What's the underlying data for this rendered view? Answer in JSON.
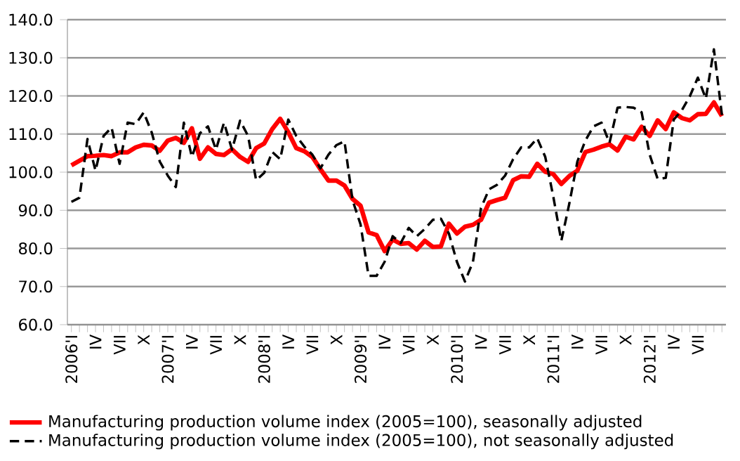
{
  "chart_data": {
    "type": "line",
    "categories": [
      "2006'I",
      null,
      null,
      "IV",
      null,
      null,
      "VII",
      null,
      null,
      "X",
      null,
      null,
      "2007'I",
      null,
      null,
      "IV",
      null,
      null,
      "VII",
      null,
      null,
      "X",
      null,
      null,
      "2008'I",
      null,
      null,
      "IV",
      null,
      null,
      "VII",
      null,
      null,
      "X",
      null,
      null,
      "2009'I",
      null,
      null,
      "IV",
      null,
      null,
      "VII",
      null,
      null,
      "X",
      null,
      null,
      "2010'I",
      null,
      null,
      "IV",
      null,
      null,
      "VII",
      null,
      null,
      "X",
      null,
      null,
      "2011'I",
      null,
      null,
      "IV",
      null,
      null,
      "VII",
      null,
      null,
      "X",
      null,
      null,
      "2012'I",
      null,
      null,
      "IV",
      null,
      null,
      "VII",
      null,
      null,
      null
    ],
    "ylim": [
      60,
      140
    ],
    "yticks": [
      {
        "value": 60,
        "label": "60.0"
      },
      {
        "value": 70,
        "label": "70.0"
      },
      {
        "value": 80,
        "label": "80.0"
      },
      {
        "value": 90,
        "label": "90.0"
      },
      {
        "value": 100,
        "label": "100.0"
      },
      {
        "value": 110,
        "label": "110.0"
      },
      {
        "value": 120,
        "label": "120.0"
      },
      {
        "value": 130,
        "label": "130.0"
      },
      {
        "value": 140,
        "label": "140.0"
      }
    ],
    "grid": "y",
    "legend": "bottom",
    "marker": "none",
    "series": [
      {
        "name": "Manufacturing production volume index (2005=100), seasonally adjusted",
        "color": "#ff0000",
        "line_style": "solid",
        "values": [
          101.8,
          103,
          104.2,
          104.3,
          104.5,
          104.2,
          105.2,
          105.2,
          106.5,
          107.2,
          107,
          105.6,
          108.3,
          109,
          107.7,
          111.5,
          103.5,
          106.5,
          104.8,
          104.5,
          106,
          104,
          102.7,
          106.3,
          107.5,
          111.3,
          114,
          110.5,
          106.3,
          105.5,
          104,
          100.8,
          97.8,
          97.8,
          96.5,
          93,
          91.2,
          84.2,
          83.5,
          79.3,
          82.3,
          81.2,
          81.4,
          79.7,
          82,
          80.4,
          80.5,
          86.5,
          83.9,
          85.7,
          86.2,
          87.5,
          92,
          92.7,
          93.3,
          97.9,
          98.9,
          98.8,
          102.2,
          100.1,
          99.5,
          96.9,
          99,
          100.4,
          105.3,
          105.9,
          106.7,
          107.3,
          105.7,
          109.3,
          108.6,
          111.9,
          109.5,
          113.6,
          111.3,
          115.7,
          114.2,
          113.6,
          115.2,
          115.3,
          118.3,
          114.7
        ]
      },
      {
        "name": "Manufacturing production volume index (2005=100), not seasonally adjusted",
        "color": "#000000",
        "line_style": "dashed",
        "values": [
          92.2,
          93.3,
          108.7,
          100.4,
          109.5,
          111.7,
          102.2,
          113,
          112.6,
          115.7,
          110.4,
          102.8,
          99.1,
          96.1,
          113,
          104,
          110.2,
          112,
          105.9,
          113,
          105.9,
          113.5,
          109.5,
          97.9,
          99.8,
          105.3,
          103.4,
          113.8,
          109.5,
          106.7,
          104.6,
          101,
          104.6,
          107.1,
          108.1,
          92.7,
          86.3,
          72.8,
          72.8,
          76.5,
          83.2,
          81.4,
          85.4,
          83.2,
          85.1,
          87.5,
          87.8,
          83.9,
          76.5,
          71.3,
          76.5,
          90.6,
          95.5,
          96.7,
          99.1,
          103.4,
          106.5,
          106.5,
          108.9,
          104,
          93.6,
          82,
          91.8,
          102.8,
          108.3,
          112,
          113,
          107.7,
          116.9,
          117.1,
          116.9,
          115.7,
          104.6,
          98.2,
          98.5,
          113.8,
          116.2,
          119.9,
          124.8,
          119.3,
          132.2,
          115
        ]
      }
    ]
  }
}
